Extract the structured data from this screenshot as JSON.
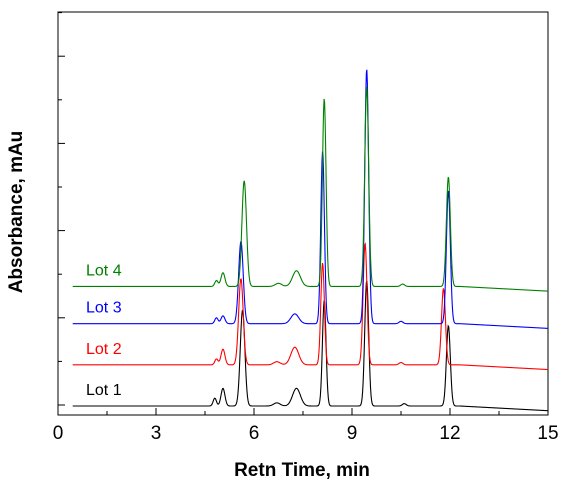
{
  "chart_data": {
    "type": "line",
    "xlabel": "Retn Time, min",
    "ylabel": "Absorbance, mAu",
    "xlim": [
      0,
      15
    ],
    "x_ticks": [
      "0",
      "3",
      "6",
      "9",
      "12",
      "15"
    ],
    "y_tick_labels_shown": false,
    "y_range_relative": [
      0,
      1
    ],
    "grid": false,
    "legend": "inline labels at left of each trace",
    "baseline_drift_note": "traces stacked with vertical offset",
    "series": [
      {
        "name": "Lot 1",
        "color": "#000000",
        "offset": 0.0,
        "peaks": [
          {
            "x": 4.8,
            "h": 0.02,
            "w": 0.05
          },
          {
            "x": 5.05,
            "h": 0.045,
            "w": 0.06
          },
          {
            "x": 5.65,
            "h": 0.245,
            "w": 0.07
          },
          {
            "x": 6.7,
            "h": 0.008,
            "w": 0.1
          },
          {
            "x": 7.3,
            "h": 0.045,
            "w": 0.12
          },
          {
            "x": 8.15,
            "h": 0.27,
            "w": 0.055
          },
          {
            "x": 9.45,
            "h": 0.32,
            "w": 0.06
          },
          {
            "x": 10.6,
            "h": 0.006,
            "w": 0.06
          },
          {
            "x": 11.95,
            "h": 0.205,
            "w": 0.06
          }
        ]
      },
      {
        "name": "Lot 2",
        "color": "#ff0000",
        "offset": 0.105,
        "peaks": [
          {
            "x": 4.85,
            "h": 0.015,
            "w": 0.05
          },
          {
            "x": 5.05,
            "h": 0.04,
            "w": 0.06
          },
          {
            "x": 5.6,
            "h": 0.22,
            "w": 0.07
          },
          {
            "x": 6.7,
            "h": 0.008,
            "w": 0.1
          },
          {
            "x": 7.25,
            "h": 0.045,
            "w": 0.12
          },
          {
            "x": 8.1,
            "h": 0.26,
            "w": 0.055
          },
          {
            "x": 9.4,
            "h": 0.31,
            "w": 0.06
          },
          {
            "x": 10.5,
            "h": 0.006,
            "w": 0.06
          },
          {
            "x": 11.8,
            "h": 0.195,
            "w": 0.06
          }
        ]
      },
      {
        "name": "Lot 3",
        "color": "#0000ff",
        "offset": 0.21,
        "peaks": [
          {
            "x": 4.85,
            "h": 0.015,
            "w": 0.05
          },
          {
            "x": 5.05,
            "h": 0.02,
            "w": 0.06
          },
          {
            "x": 5.6,
            "h": 0.21,
            "w": 0.07
          },
          {
            "x": 7.25,
            "h": 0.025,
            "w": 0.12
          },
          {
            "x": 8.1,
            "h": 0.44,
            "w": 0.055
          },
          {
            "x": 9.45,
            "h": 0.65,
            "w": 0.06
          },
          {
            "x": 10.5,
            "h": 0.006,
            "w": 0.06
          },
          {
            "x": 11.95,
            "h": 0.34,
            "w": 0.06
          }
        ]
      },
      {
        "name": "Lot 4",
        "color": "#008000",
        "offset": 0.305,
        "peaks": [
          {
            "x": 4.85,
            "h": 0.015,
            "w": 0.05
          },
          {
            "x": 5.05,
            "h": 0.035,
            "w": 0.06
          },
          {
            "x": 5.7,
            "h": 0.27,
            "w": 0.07
          },
          {
            "x": 6.75,
            "h": 0.008,
            "w": 0.1
          },
          {
            "x": 7.3,
            "h": 0.04,
            "w": 0.12
          },
          {
            "x": 8.15,
            "h": 0.48,
            "w": 0.055
          },
          {
            "x": 9.45,
            "h": 0.51,
            "w": 0.06
          },
          {
            "x": 10.55,
            "h": 0.006,
            "w": 0.06
          },
          {
            "x": 11.95,
            "h": 0.28,
            "w": 0.06
          }
        ]
      }
    ]
  }
}
